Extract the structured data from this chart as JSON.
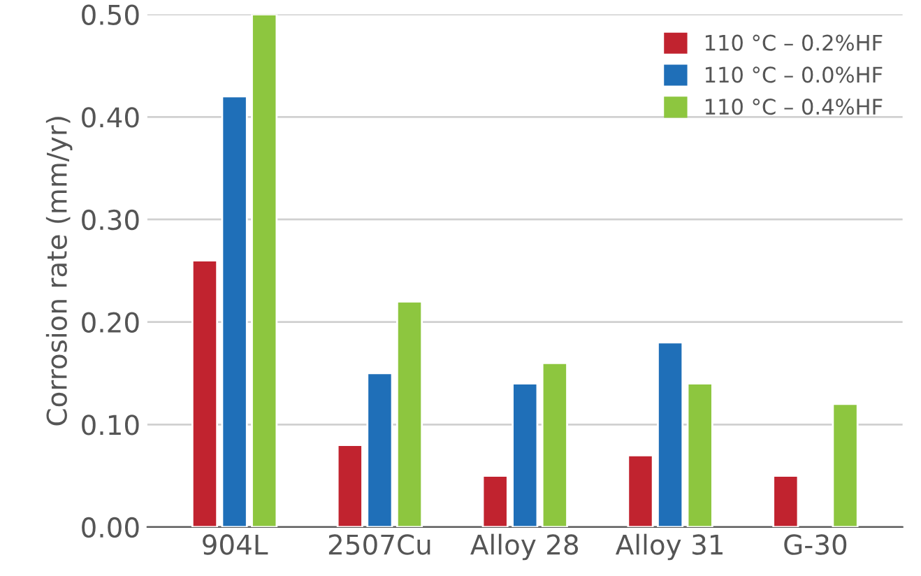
{
  "chart_data": {
    "type": "bar",
    "ylabel": "Corrosion rate (mm/yr)",
    "categories": [
      "904L",
      "2507Cu",
      "Alloy 28",
      "Alloy 31",
      "G-30"
    ],
    "series": [
      {
        "name": "110 °C – 0.2%HF",
        "color": "#c1232f",
        "values": [
          0.26,
          0.08,
          0.05,
          0.07,
          0.05
        ]
      },
      {
        "name": "110 °C – 0.0%HF",
        "color": "#1f6fb8",
        "values": [
          0.42,
          0.15,
          0.14,
          0.18,
          null
        ]
      },
      {
        "name": "110 °C – 0.4%HF",
        "color": "#8dc63f",
        "values": [
          0.5,
          0.22,
          0.16,
          0.14,
          0.12
        ]
      }
    ],
    "ylim": [
      0,
      0.5
    ],
    "yticks": [
      {
        "value": 0,
        "label": "0.00"
      },
      {
        "value": 0.1,
        "label": "0.10"
      },
      {
        "value": 0.2,
        "label": "0.20"
      },
      {
        "value": 0.3,
        "label": "0.30"
      },
      {
        "value": 0.4,
        "label": "0.40"
      },
      {
        "value": 0.5,
        "label": "0.50"
      }
    ],
    "grid": "y",
    "legend": "top right"
  }
}
